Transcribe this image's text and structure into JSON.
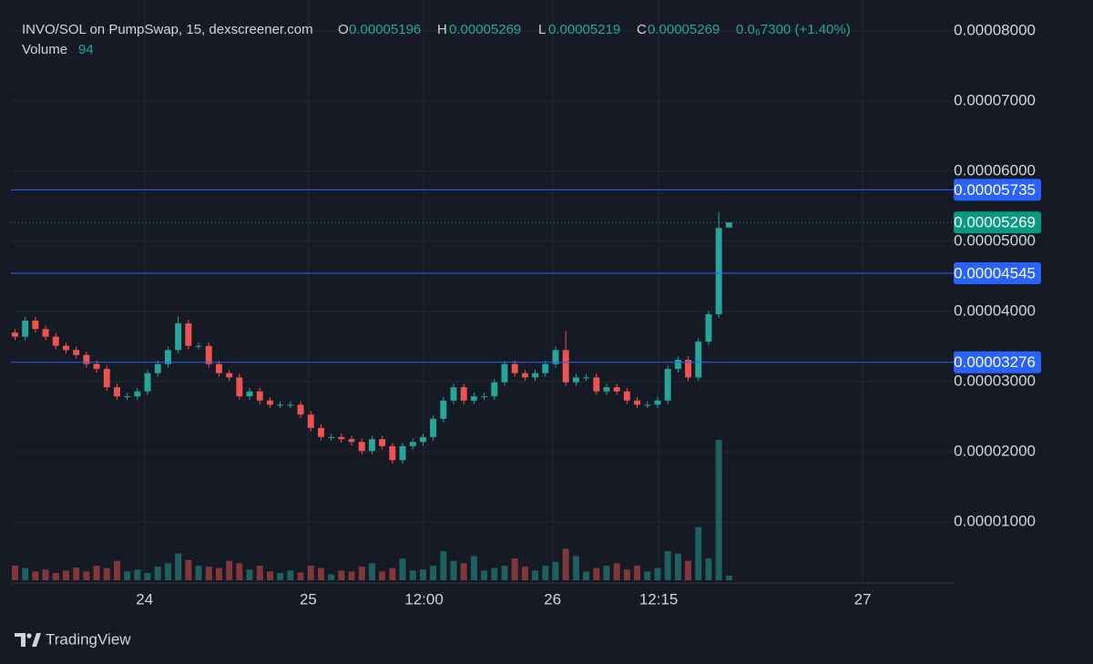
{
  "chart_data": {
    "type": "candlestick",
    "title": "INVO/SOL on PumpSwap, 15, dexscreener.com",
    "legend": {
      "open_label": "O",
      "open": "0.00005196",
      "high_label": "H",
      "high": "0.00005269",
      "low_label": "L",
      "low": "0.00005219",
      "close_label": "C",
      "close": "0.00005269",
      "change": "0.0₆7300 (+1.40%)"
    },
    "volume_label": "Volume",
    "open": [
      3.7e-05,
      3.64e-05,
      3.87e-05,
      3.75e-05,
      3.64e-05,
      3.51e-05,
      3.45e-05,
      3.38e-05,
      3.25e-05,
      3.18e-05,
      2.92e-05,
      2.79e-05,
      2.79e-05,
      2.86e-05,
      3.12e-05,
      3.25e-05,
      3.45e-05,
      3.83e-05,
      3.51e-05,
      3.51e-05,
      3.25e-05,
      3.12e-05,
      3.06e-05,
      2.79e-05,
      2.86e-05,
      2.73e-05,
      2.67e-05,
      2.67e-05,
      2.67e-05,
      2.53e-05,
      2.34e-05,
      2.21e-05,
      2.21e-05,
      2.18e-05,
      2.14e-05,
      2.01e-05,
      2.18e-05,
      2.08e-05,
      1.88e-05,
      2.08e-05,
      2.14e-05,
      2.21e-05,
      2.47e-05,
      2.73e-05,
      2.92e-05,
      2.73e-05,
      2.79e-05,
      2.79e-05,
      2.99e-05,
      3.25e-05,
      3.12e-05,
      3.06e-05,
      3.12e-05,
      3.25e-05,
      3.45e-05,
      2.99e-05,
      3.06e-05,
      3.06e-05,
      2.86e-05,
      2.92e-05,
      2.86e-05,
      2.73e-05,
      2.67e-05,
      2.67e-05,
      2.73e-05,
      3.18e-05,
      3.31e-05,
      3.06e-05,
      3.57e-05,
      3.96e-05,
      5.196e-05
    ],
    "high": [
      3.75e-05,
      3.92e-05,
      3.92e-05,
      3.8e-05,
      3.69e-05,
      3.56e-05,
      3.5e-05,
      3.43e-05,
      3.3e-05,
      3.23e-05,
      2.97e-05,
      2.84e-05,
      2.91e-05,
      3.17e-05,
      3.3e-05,
      3.5e-05,
      3.93e-05,
      3.88e-05,
      3.56e-05,
      3.56e-05,
      3.3e-05,
      3.17e-05,
      3.11e-05,
      2.91e-05,
      2.91e-05,
      2.78e-05,
      2.72e-05,
      2.72e-05,
      2.72e-05,
      2.58e-05,
      2.39e-05,
      2.26e-05,
      2.26e-05,
      2.23e-05,
      2.19e-05,
      2.23e-05,
      2.23e-05,
      2.13e-05,
      2.13e-05,
      2.19e-05,
      2.26e-05,
      2.52e-05,
      2.78e-05,
      2.97e-05,
      2.97e-05,
      2.84e-05,
      2.84e-05,
      3.04e-05,
      3.3e-05,
      3.3e-05,
      3.17e-05,
      3.17e-05,
      3.3e-05,
      3.5e-05,
      3.72e-05,
      3.11e-05,
      3.11e-05,
      3.11e-05,
      2.97e-05,
      2.97e-05,
      2.91e-05,
      2.78e-05,
      2.72e-05,
      2.78e-05,
      3.23e-05,
      3.36e-05,
      3.36e-05,
      3.62e-05,
      4.01e-05,
      5.42e-05,
      5.269e-05
    ],
    "low": [
      3.59e-05,
      3.59e-05,
      3.7e-05,
      3.59e-05,
      3.46e-05,
      3.4e-05,
      3.33e-05,
      3.2e-05,
      3.13e-05,
      2.87e-05,
      2.74e-05,
      2.74e-05,
      2.74e-05,
      2.81e-05,
      3.07e-05,
      3.2e-05,
      3.4e-05,
      3.46e-05,
      3.46e-05,
      3.2e-05,
      3.07e-05,
      3.01e-05,
      2.74e-05,
      2.74e-05,
      2.68e-05,
      2.62e-05,
      2.62e-05,
      2.62e-05,
      2.48e-05,
      2.29e-05,
      2.16e-05,
      2.16e-05,
      2.13e-05,
      2.09e-05,
      1.96e-05,
      1.96e-05,
      2.03e-05,
      1.83e-05,
      1.83e-05,
      2.03e-05,
      2.09e-05,
      2.16e-05,
      2.42e-05,
      2.68e-05,
      2.68e-05,
      2.68e-05,
      2.74e-05,
      2.74e-05,
      2.94e-05,
      3.07e-05,
      3.01e-05,
      3.01e-05,
      3.07e-05,
      3.2e-05,
      2.94e-05,
      2.94e-05,
      3.01e-05,
      2.81e-05,
      2.81e-05,
      2.81e-05,
      2.68e-05,
      2.62e-05,
      2.62e-05,
      2.62e-05,
      2.68e-05,
      3.13e-05,
      3.01e-05,
      3.01e-05,
      3.52e-05,
      3.91e-05,
      5.219e-05
    ],
    "close": [
      3.64e-05,
      3.87e-05,
      3.75e-05,
      3.64e-05,
      3.51e-05,
      3.45e-05,
      3.38e-05,
      3.25e-05,
      3.18e-05,
      2.92e-05,
      2.79e-05,
      2.79e-05,
      2.86e-05,
      3.12e-05,
      3.25e-05,
      3.45e-05,
      3.83e-05,
      3.51e-05,
      3.51e-05,
      3.25e-05,
      3.12e-05,
      3.06e-05,
      2.79e-05,
      2.86e-05,
      2.73e-05,
      2.67e-05,
      2.67e-05,
      2.67e-05,
      2.53e-05,
      2.34e-05,
      2.21e-05,
      2.21e-05,
      2.18e-05,
      2.14e-05,
      2.01e-05,
      2.18e-05,
      2.08e-05,
      1.88e-05,
      2.08e-05,
      2.14e-05,
      2.21e-05,
      2.47e-05,
      2.73e-05,
      2.92e-05,
      2.73e-05,
      2.79e-05,
      2.79e-05,
      2.99e-05,
      3.25e-05,
      3.12e-05,
      3.06e-05,
      3.12e-05,
      3.25e-05,
      3.45e-05,
      2.99e-05,
      3.06e-05,
      3.06e-05,
      2.86e-05,
      2.92e-05,
      2.86e-05,
      2.73e-05,
      2.67e-05,
      2.67e-05,
      2.73e-05,
      3.18e-05,
      3.31e-05,
      3.06e-05,
      3.57e-05,
      3.96e-05,
      5.19e-05,
      5.269e-05
    ],
    "volume": [
      300,
      250,
      180,
      220,
      150,
      200,
      260,
      180,
      300,
      250,
      400,
      180,
      220,
      150,
      280,
      350,
      550,
      420,
      300,
      280,
      250,
      400,
      350,
      220,
      300,
      180,
      150,
      200,
      160,
      300,
      250,
      120,
      200,
      180,
      280,
      350,
      180,
      250,
      450,
      200,
      220,
      300,
      600,
      400,
      350,
      500,
      200,
      250,
      300,
      450,
      280,
      200,
      300,
      380,
      650,
      500,
      180,
      250,
      300,
      350,
      220,
      300,
      180,
      250,
      600,
      550,
      400,
      1100,
      450,
      2900,
      94
    ],
    "up_color": "#26a69a",
    "down_color": "#ef5350",
    "xlim": [
      -0.4,
      91.4
    ],
    "xticks": [
      {
        "value": 12.7,
        "label": "24"
      },
      {
        "value": 28.75,
        "label": "25"
      },
      {
        "value": 40.1,
        "label": "12:00"
      },
      {
        "value": 52.7,
        "label": "26"
      },
      {
        "value": 63.1,
        "label": "12:15"
      },
      {
        "value": 83.1,
        "label": "27"
      }
    ],
    "ylim": [
      1.3e-06,
      8.44e-05
    ],
    "yticks": [
      {
        "value": 1e-05,
        "label": "0.00001000"
      },
      {
        "value": 2e-05,
        "label": "0.00002000"
      },
      {
        "value": 3e-05,
        "label": "0.00003000"
      },
      {
        "value": 4e-05,
        "label": "0.00004000"
      },
      {
        "value": 5e-05,
        "label": "0.00005000"
      },
      {
        "value": 6e-05,
        "label": "0.00006000"
      },
      {
        "value": 7e-05,
        "label": "0.00007000"
      },
      {
        "value": 8e-05,
        "label": "0.00008000"
      }
    ],
    "volume_lim": [
      0,
      3200
    ],
    "price_lines": [
      {
        "value": 5.735e-05,
        "color": "#2962ff"
      },
      {
        "value": 4.545e-05,
        "color": "#2962ff"
      },
      {
        "value": 3.276e-05,
        "color": "#2962ff"
      }
    ],
    "last_price": {
      "value": 5.269e-05,
      "color": "#089981"
    },
    "grid": true
  },
  "footer": {
    "brand": "TradingView"
  }
}
